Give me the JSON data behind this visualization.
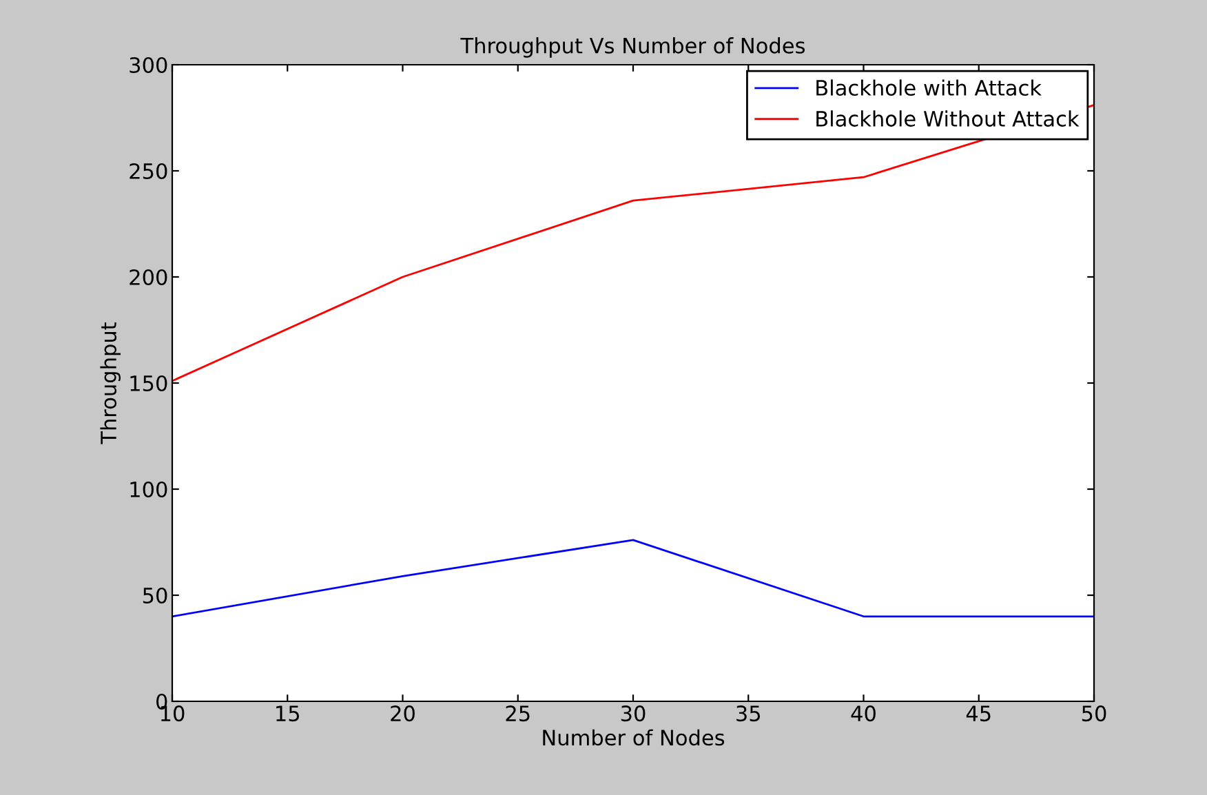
{
  "chart_data": {
    "type": "line",
    "title": "Throughput Vs Number of Nodes",
    "xlabel": "Number of Nodes",
    "ylabel": "Throughput",
    "x": [
      10,
      20,
      30,
      40,
      50
    ],
    "series": [
      {
        "name": "Blackhole with Attack",
        "color": "#0000ff",
        "values": [
          40,
          59,
          76,
          40,
          40
        ]
      },
      {
        "name": "Blackhole Without Attack",
        "color": "#ff0000",
        "values": [
          151,
          200,
          236,
          247,
          281
        ]
      }
    ],
    "xlim": [
      10,
      50
    ],
    "xticks": [
      10,
      15,
      20,
      25,
      30,
      35,
      40,
      45,
      50
    ],
    "ylim": [
      0,
      300
    ],
    "yticks": [
      0,
      50,
      100,
      150,
      200,
      250,
      300
    ],
    "grid": false,
    "legend": "top right",
    "marker": "none",
    "line_style": "solid"
  }
}
